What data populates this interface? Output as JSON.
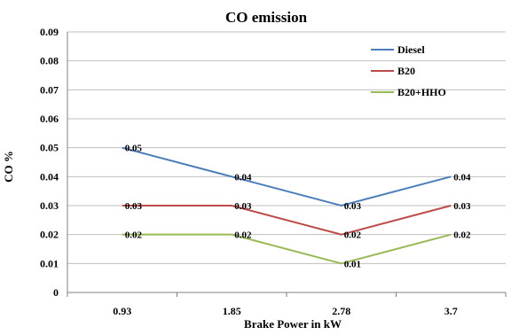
{
  "chart_data": {
    "type": "line",
    "title": "CO emission",
    "xlabel": "Brake Power in kW",
    "ylabel": "CO %",
    "categories": [
      "0.93",
      "1.85",
      "2.78",
      "3.7"
    ],
    "ylim": [
      0,
      0.09
    ],
    "yticks": [
      "0",
      "0.01",
      "0.02",
      "0.03",
      "0.04",
      "0.05",
      "0.06",
      "0.07",
      "0.08",
      "0.09"
    ],
    "grid": "horizontal",
    "legend_position": "top-right",
    "series": [
      {
        "name": "Diesel",
        "color": "#4a7ebb",
        "values": [
          0.05,
          0.04,
          0.03,
          0.04
        ],
        "labels": [
          "0.05",
          "0.04",
          "0.03",
          "0.04"
        ]
      },
      {
        "name": "B20",
        "color": "#be4b48",
        "values": [
          0.03,
          0.03,
          0.02,
          0.03
        ],
        "labels": [
          "0.03",
          "0.03",
          "0.02",
          "0.03"
        ]
      },
      {
        "name": "B20+HHO",
        "color": "#98b954",
        "values": [
          0.02,
          0.02,
          0.01,
          0.02
        ],
        "labels": [
          "0.02",
          "0.02",
          "0.01",
          "0.02"
        ]
      }
    ]
  }
}
